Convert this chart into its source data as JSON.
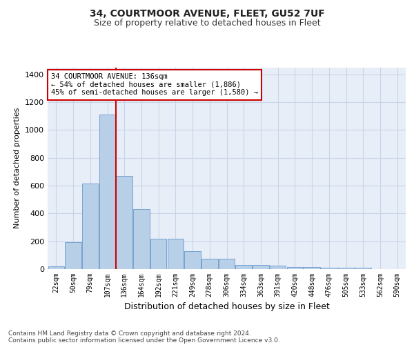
{
  "title_line1": "34, COURTMOOR AVENUE, FLEET, GU52 7UF",
  "title_line2": "Size of property relative to detached houses in Fleet",
  "xlabel": "Distribution of detached houses by size in Fleet",
  "ylabel": "Number of detached properties",
  "categories": [
    "22sqm",
    "50sqm",
    "79sqm",
    "107sqm",
    "136sqm",
    "164sqm",
    "192sqm",
    "221sqm",
    "249sqm",
    "278sqm",
    "306sqm",
    "334sqm",
    "363sqm",
    "391sqm",
    "420sqm",
    "448sqm",
    "476sqm",
    "505sqm",
    "533sqm",
    "562sqm",
    "590sqm"
  ],
  "values": [
    20,
    195,
    615,
    1110,
    670,
    430,
    220,
    220,
    130,
    75,
    75,
    30,
    30,
    25,
    15,
    15,
    10,
    10,
    10,
    0,
    0
  ],
  "bar_color": "#b8cfe8",
  "bar_edge_color": "#6699cc",
  "vline_index": 4,
  "vline_color": "#cc0000",
  "annotation_line1": "34 COURTMOOR AVENUE: 136sqm",
  "annotation_line2": "← 54% of detached houses are smaller (1,886)",
  "annotation_line3": "45% of semi-detached houses are larger (1,580) →",
  "annotation_box_edgecolor": "#cc0000",
  "ylim": [
    0,
    1450
  ],
  "yticks": [
    0,
    200,
    400,
    600,
    800,
    1000,
    1200,
    1400
  ],
  "grid_color": "#c8d4e8",
  "bg_color": "#e8eef8",
  "footer_line1": "Contains HM Land Registry data © Crown copyright and database right 2024.",
  "footer_line2": "Contains public sector information licensed under the Open Government Licence v3.0.",
  "title_fontsize": 10,
  "subtitle_fontsize": 9,
  "xlabel_fontsize": 9,
  "ylabel_fontsize": 8,
  "ytick_fontsize": 8,
  "xtick_fontsize": 7,
  "annotation_fontsize": 7.5,
  "footer_fontsize": 6.5
}
